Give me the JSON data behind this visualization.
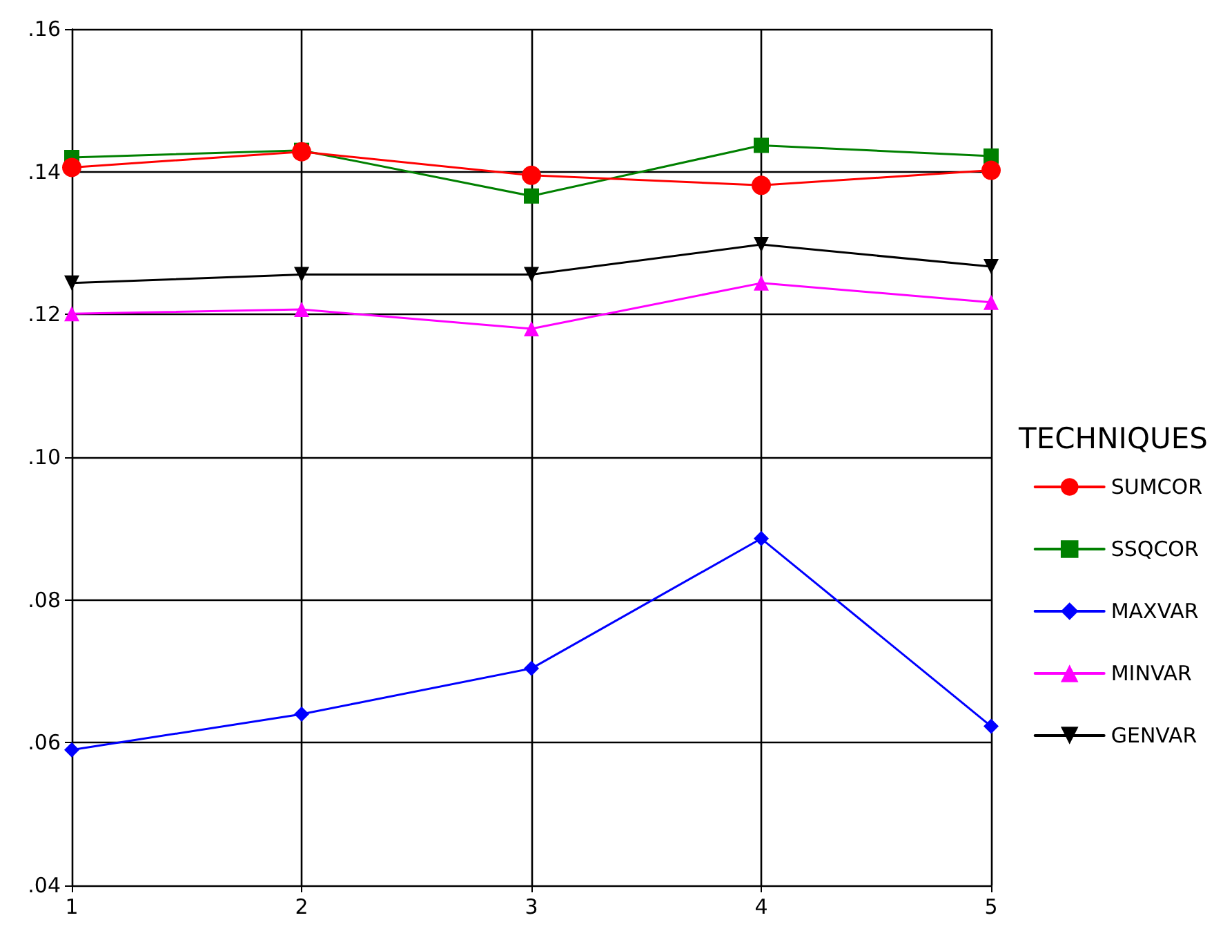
{
  "chart_data": {
    "type": "line",
    "legend_title": "TECHNIQUES",
    "x": [
      1,
      2,
      3,
      4,
      5
    ],
    "series": [
      {
        "name": "SUMCOR",
        "color": "#ff0000",
        "marker": "circle",
        "values": [
          0.1406,
          0.1428,
          0.1395,
          0.1381,
          0.1402
        ]
      },
      {
        "name": "SSQCOR",
        "color": "#008000",
        "marker": "square",
        "values": [
          0.142,
          0.143,
          0.1366,
          0.1437,
          0.1422
        ]
      },
      {
        "name": "MAXVAR",
        "color": "#0000ff",
        "marker": "diamond",
        "values": [
          0.059,
          0.064,
          0.0704,
          0.0886,
          0.0623
        ]
      },
      {
        "name": "MINVAR",
        "color": "#ff00ff",
        "marker": "triangle",
        "values": [
          0.1201,
          0.1207,
          0.118,
          0.1244,
          0.1217
        ]
      },
      {
        "name": "GENVAR",
        "color": "#000000",
        "marker": "triangle-down",
        "values": [
          0.1244,
          0.1256,
          0.1256,
          0.1298,
          0.1267
        ]
      }
    ],
    "xlim": [
      1,
      5
    ],
    "xticks": [
      1,
      2,
      3,
      4,
      5
    ],
    "ylim": [
      0.04,
      0.16
    ],
    "yticks": [
      {
        "value": 0.04,
        "label": ".04"
      },
      {
        "value": 0.06,
        "label": ".06"
      },
      {
        "value": 0.08,
        "label": ".08"
      },
      {
        "value": 0.1,
        "label": ".10"
      },
      {
        "value": 0.12,
        "label": ".12"
      },
      {
        "value": 0.14,
        "label": ".14"
      },
      {
        "value": 0.16,
        "label": ".16"
      }
    ],
    "grid": true,
    "legend": "right",
    "line_style": "solid"
  }
}
